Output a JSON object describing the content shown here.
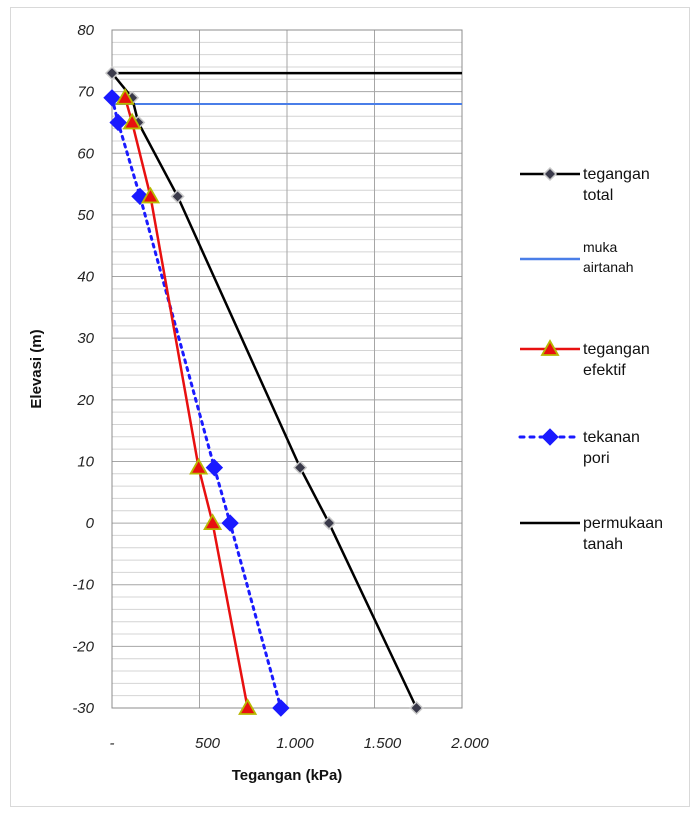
{
  "chart_data": {
    "type": "line",
    "title": "",
    "xlabel": "Tegangan (kPa)",
    "ylabel": "Elevasi (m)",
    "xlim": [
      0,
      2000
    ],
    "ylim": [
      -30,
      80
    ],
    "x_tick_labels": [
      {
        "value": 0,
        "label": "-"
      },
      {
        "value": 500,
        "label": "500"
      },
      {
        "value": 1000,
        "label": "1.000"
      },
      {
        "value": 1500,
        "label": "1.500"
      },
      {
        "value": 2000,
        "label": "2.000"
      }
    ],
    "y_ticks": [
      80,
      70,
      60,
      50,
      40,
      30,
      20,
      10,
      0,
      -10,
      -20,
      -30
    ],
    "grid": true,
    "legend_position": "right",
    "series": [
      {
        "name": "tegangan total",
        "color": "#000000",
        "line": "solid",
        "marker": "diamond-dark",
        "points": [
          [
            0,
            73
          ],
          [
            115,
            69
          ],
          [
            150,
            65
          ],
          [
            375,
            53
          ],
          [
            1075,
            9
          ],
          [
            1240,
            0
          ],
          [
            1740,
            -30
          ]
        ]
      },
      {
        "name": "muka airtanah",
        "color": "#4a7ee8",
        "line": "solid",
        "marker": "none",
        "points": [
          [
            0,
            68
          ],
          [
            2000,
            68
          ]
        ]
      },
      {
        "name": "tegangan efektif",
        "color": "#e81010",
        "line": "solid",
        "marker": "triangle",
        "points": [
          [
            75,
            69
          ],
          [
            115,
            65
          ],
          [
            220,
            53
          ],
          [
            495,
            9
          ],
          [
            575,
            0
          ],
          [
            775,
            -30
          ]
        ]
      },
      {
        "name": "tekanan pori",
        "color": "#1a1aff",
        "line": "dotted",
        "marker": "diamond-blue",
        "points": [
          [
            0,
            69
          ],
          [
            35,
            65
          ],
          [
            160,
            53
          ],
          [
            585,
            9
          ],
          [
            675,
            0
          ],
          [
            965,
            -30
          ]
        ]
      },
      {
        "name": "permukaan tanah",
        "color": "#000000",
        "line": "solid",
        "marker": "none",
        "points": [
          [
            0,
            73
          ],
          [
            2000,
            73
          ]
        ]
      }
    ]
  }
}
